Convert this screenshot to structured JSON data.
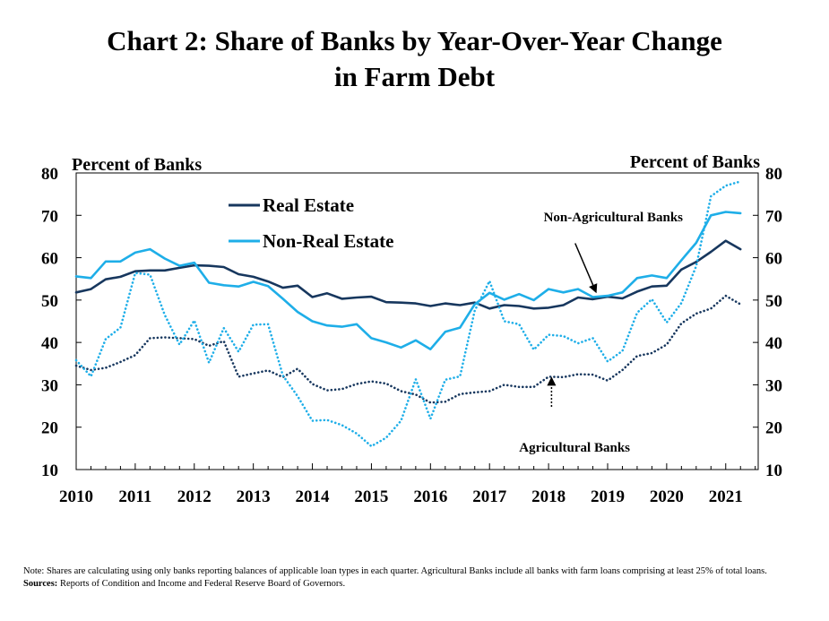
{
  "chart_data": {
    "type": "line",
    "title_line1": "Chart 2: Share of Banks by Year-Over-Year Change",
    "title_line2": "in Farm Debt",
    "ylabel_left": "Percent of Banks",
    "ylabel_right": "Percent of Banks",
    "ylim": [
      10,
      80
    ],
    "y_ticks": [
      10,
      20,
      30,
      40,
      50,
      60,
      70,
      80
    ],
    "xlim": [
      2010.0,
      2021.55
    ],
    "x_ticks": [
      2010,
      2011,
      2012,
      2013,
      2014,
      2015,
      2016,
      2017,
      2018,
      2019,
      2020,
      2021
    ],
    "x_tick_labels": [
      "2010",
      "2011",
      "2012",
      "2013",
      "2014",
      "2015",
      "2016",
      "2017",
      "2018",
      "2019",
      "2020",
      "2021"
    ],
    "grid": false,
    "legend_placement": "top-left",
    "x": [
      2010.0,
      2010.25,
      2010.5,
      2010.75,
      2011.0,
      2011.25,
      2011.5,
      2011.75,
      2012.0,
      2012.25,
      2012.5,
      2012.75,
      2013.0,
      2013.25,
      2013.5,
      2013.75,
      2014.0,
      2014.25,
      2014.5,
      2014.75,
      2015.0,
      2015.25,
      2015.5,
      2015.75,
      2016.0,
      2016.25,
      2016.5,
      2016.75,
      2017.0,
      2017.25,
      2017.5,
      2017.75,
      2018.0,
      2018.25,
      2018.5,
      2018.75,
      2019.0,
      2019.25,
      2019.5,
      2019.75,
      2020.0,
      2020.25,
      2020.5,
      2020.75,
      2021.0,
      2021.25
    ],
    "series": [
      {
        "name": "Real Estate",
        "group": "Non-Agricultural Banks",
        "color": "#17375e",
        "style": "solid",
        "values": [
          51.8,
          52.6,
          54.9,
          55.5,
          56.8,
          57.0,
          57.0,
          57.6,
          58.2,
          58.1,
          57.8,
          56.1,
          55.5,
          54.4,
          52.9,
          53.4,
          50.7,
          51.6,
          50.3,
          50.6,
          50.8,
          49.5,
          49.4,
          49.2,
          48.6,
          49.2,
          48.8,
          49.4,
          48.0,
          48.8,
          48.6,
          48.0,
          48.2,
          48.8,
          50.6,
          50.2,
          50.8,
          50.4,
          52.0,
          53.2,
          53.4,
          57.2,
          59.0,
          61.4,
          64.0,
          62.0
        ]
      },
      {
        "name": "Non-Real Estate",
        "group": "Non-Agricultural Banks",
        "color": "#1eaee8",
        "style": "solid",
        "values": [
          55.6,
          55.2,
          59.1,
          59.1,
          61.2,
          62.0,
          59.8,
          58.1,
          58.8,
          54.1,
          53.5,
          53.2,
          54.3,
          53.3,
          50.3,
          47.2,
          45.0,
          44.0,
          43.7,
          44.3,
          41.0,
          40.0,
          38.8,
          40.5,
          38.4,
          42.5,
          43.5,
          49.0,
          51.7,
          50.1,
          51.4,
          50.0,
          52.6,
          51.8,
          52.6,
          50.7,
          51.0,
          51.8,
          55.2,
          55.8,
          55.2,
          59.4,
          63.5,
          70.0,
          70.8,
          70.5
        ]
      },
      {
        "name": "Real Estate",
        "group": "Agricultural Banks",
        "color": "#17375e",
        "style": "dotted",
        "values": [
          34.5,
          33.5,
          34.0,
          35.4,
          37.0,
          41.0,
          41.2,
          41.0,
          40.8,
          39.2,
          40.3,
          31.9,
          32.7,
          33.4,
          31.8,
          33.8,
          30.2,
          28.7,
          29.0,
          30.2,
          30.8,
          30.3,
          28.5,
          27.7,
          25.8,
          26.0,
          27.8,
          28.2,
          28.5,
          30.0,
          29.5,
          29.5,
          31.9,
          31.8,
          32.5,
          32.4,
          31.0,
          33.5,
          36.8,
          37.5,
          39.5,
          44.5,
          46.8,
          48.0,
          51.0,
          49.0
        ]
      },
      {
        "name": "Non-Real Estate",
        "group": "Agricultural Banks",
        "color": "#1eaee8",
        "style": "dotted",
        "values": [
          35.8,
          32.0,
          40.8,
          43.5,
          56.4,
          56.0,
          46.5,
          39.5,
          45.2,
          35.2,
          43.4,
          37.8,
          44.2,
          44.3,
          32.2,
          27.3,
          21.5,
          21.7,
          20.5,
          18.5,
          15.5,
          17.5,
          21.5,
          31.3,
          22.0,
          31.2,
          32.0,
          47.5,
          54.5,
          45.0,
          44.3,
          38.3,
          41.8,
          41.5,
          39.8,
          41.0,
          35.5,
          38.0,
          47.0,
          50.2,
          44.7,
          49.3,
          58.0,
          74.5,
          77.0,
          78.0
        ]
      }
    ],
    "annotations": [
      {
        "text": "Non-Agricultural  Banks",
        "arrow_from": [
          2018.45,
          63.4
        ],
        "arrow_to": [
          2018.8,
          52.0
        ]
      },
      {
        "text": "Agricultural  Banks",
        "arrow_from": [
          2018.05,
          24.8
        ],
        "arrow_to": [
          2018.05,
          31.5
        ]
      }
    ]
  },
  "legend": {
    "entries": [
      {
        "label": "Real Estate",
        "color": "#17375e"
      },
      {
        "label": "Non-Real Estate",
        "color": "#1eaee8"
      }
    ]
  },
  "footnote": {
    "note": "Note: Shares are calculating using only banks reporting balances of applicable loan types in each quarter. Agricultural Banks include all banks with farm loans comprising at least 25% of total loans.",
    "sources_label": "Sources:",
    "sources_text": " Reports of Condition and Income and Federal Reserve Board of Governors."
  }
}
